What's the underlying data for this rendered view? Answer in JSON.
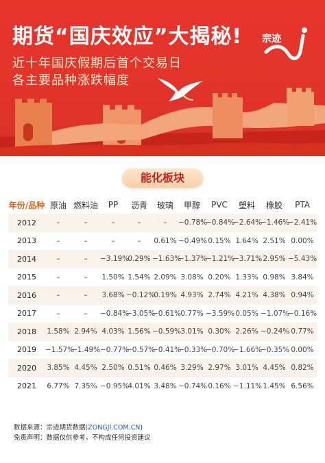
{
  "banner": {
    "title": "期货“国庆效应”大揭秘!",
    "subtitle1": "近十年国庆假期后首个交易日",
    "subtitle2": "各主要品种涨跌幅度",
    "logo_text": "宗迹"
  },
  "section": {
    "label": "能化板块"
  },
  "table": {
    "headers": [
      "年份/品种",
      "原油",
      "燃料油",
      "PP",
      "沥青",
      "玻璃",
      "甲醇",
      "PVC",
      "塑料",
      "橡胶",
      "PTA"
    ],
    "rows": [
      [
        "2012",
        "–",
        "–",
        "–",
        "–",
        "–",
        "−0.78%",
        "−0.84%",
        "−2.64%",
        "−1.46%",
        "−2.41%"
      ],
      [
        "2013",
        "–",
        "–",
        "–",
        "–",
        "0.61%",
        "−0.49%",
        "0.15%",
        "1.64%",
        "2.51%",
        "0.00%"
      ],
      [
        "2014",
        "–",
        "–",
        "−3.19%",
        "0.29%",
        "−1.63%",
        "−1.37%",
        "−1.21%",
        "−3.71%",
        "2.95%",
        "−5.43%"
      ],
      [
        "2015",
        "–",
        "–",
        "1.50%",
        "1.54%",
        "2.09%",
        "3.08%",
        "0.20%",
        "1.33%",
        "0.98%",
        "3.84%"
      ],
      [
        "2016",
        "–",
        "–",
        "3.68%",
        "−0.12%",
        "0.19%",
        "4.93%",
        "2.74%",
        "4.21%",
        "4.38%",
        "0.94%"
      ],
      [
        "2017",
        "–",
        "–",
        "−0.84%",
        "−3.05%",
        "−0.61%",
        "0.77%",
        "−3.59%",
        "0.05%",
        "−1.07%",
        "−0.16%"
      ],
      [
        "2018",
        "1.58%",
        "2.94%",
        "4.03%",
        "1.56%",
        "−0.59%",
        "3.01%",
        "0.30%",
        "2.26%",
        "−0.24%",
        "0.77%"
      ],
      [
        "2019",
        "−1.57%",
        "−1.49%",
        "−0.77%",
        "−0.57%",
        "−0.41%",
        "−0.33%",
        "−0.70%",
        "−1.66%",
        "−0.35%",
        "0.00%"
      ],
      [
        "2020",
        "3.85%",
        "4.45%",
        "2.50%",
        "0.51%",
        "0.46%",
        "3.29%",
        "2.97%",
        "3.01%",
        "4.45%",
        "0.82%"
      ],
      [
        "2021",
        "6.77%",
        "7.35%",
        "−0.95%",
        "4.01%",
        "3.48%",
        "−0.74%",
        "0.16%",
        "−1.11%",
        "1.45%",
        "6.56%"
      ]
    ]
  },
  "footer": {
    "source_label": "数据来源：宗迹期货数据(",
    "source_link": "ZONGJI.COM.CN",
    "source_close": ")",
    "disclaimer": "免责声明：数据仅供参考，不构成任何投资建议"
  },
  "colors": {
    "banner_red": "#e2332a",
    "negative_green": "#1ea64a",
    "positive_red": "#e0261b",
    "header_orange": "#e0651c"
  }
}
